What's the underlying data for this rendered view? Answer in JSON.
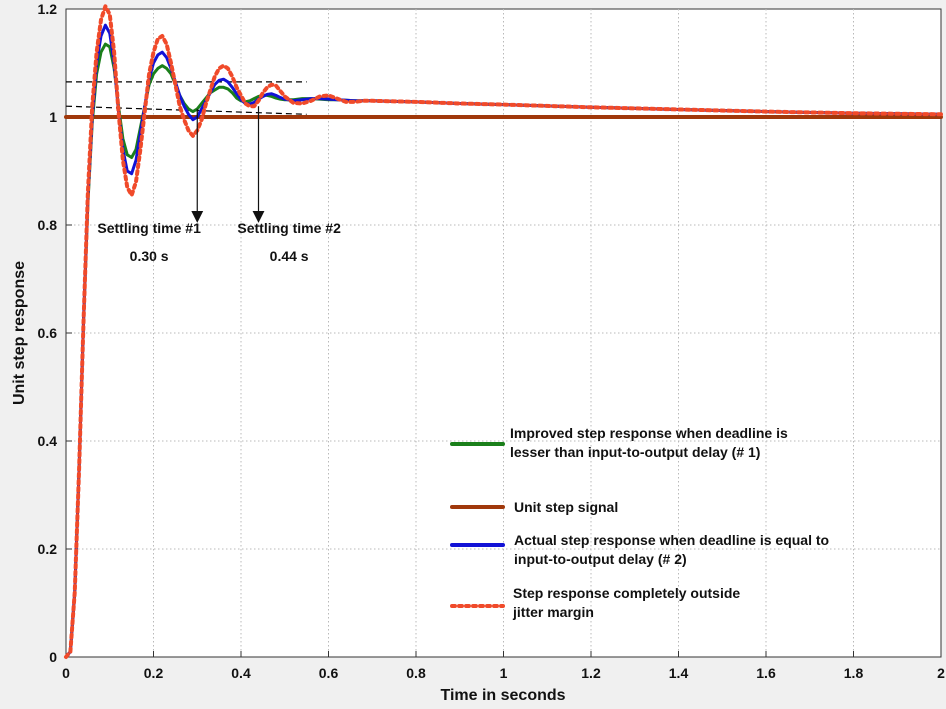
{
  "chart_data": {
    "type": "line",
    "xlabel": "Time in seconds",
    "ylabel": "Unit step response",
    "xlim": [
      0,
      2
    ],
    "ylim": [
      0,
      1.2
    ],
    "grid": true,
    "legend_position": "bottom-right",
    "x_ticks": [
      "0",
      "0.2",
      "0.4",
      "0.6",
      "0.8",
      "1",
      "1.2",
      "1.4",
      "1.6",
      "1.8",
      "2"
    ],
    "y_ticks": [
      "0",
      "0.2",
      "0.4",
      "0.6",
      "0.8",
      "1",
      "1.2"
    ],
    "series": [
      {
        "name": "Improved step response when deadline is lesser than input-to-output delay (# 1)",
        "legend_lines": [
          "Improved step response when deadline is",
          "lesser than input-to-output delay (# 1)"
        ],
        "color": "#1a7f1a",
        "line_style": "solid",
        "final_value": 1.0,
        "x": [
          0,
          0.01,
          0.02,
          0.03,
          0.04,
          0.05,
          0.06,
          0.07,
          0.08,
          0.09,
          0.1,
          0.11,
          0.12,
          0.13,
          0.14,
          0.15,
          0.16,
          0.17,
          0.18,
          0.19,
          0.2,
          0.21,
          0.22,
          0.23,
          0.24,
          0.25,
          0.26,
          0.27,
          0.28,
          0.29,
          0.3,
          0.31,
          0.32,
          0.33,
          0.34,
          0.35,
          0.36,
          0.37,
          0.38,
          0.39,
          0.4,
          0.41,
          0.42,
          0.43,
          0.44,
          0.45,
          0.46,
          0.47,
          0.48,
          0.49,
          0.5,
          0.52,
          0.54,
          0.56,
          0.58,
          0.6,
          0.62,
          0.64,
          0.66,
          0.68,
          0.7,
          0.75,
          0.8,
          0.9,
          1.0,
          1.2,
          1.4,
          1.6,
          1.8,
          2.0
        ],
        "y": [
          0,
          0.01,
          0.12,
          0.35,
          0.62,
          0.84,
          0.99,
          1.08,
          1.12,
          1.135,
          1.13,
          1.09,
          1.02,
          0.96,
          0.93,
          0.925,
          0.94,
          0.98,
          1.02,
          1.06,
          1.08,
          1.09,
          1.095,
          1.09,
          1.08,
          1.06,
          1.04,
          1.025,
          1.015,
          1.01,
          1.015,
          1.025,
          1.035,
          1.045,
          1.05,
          1.055,
          1.055,
          1.052,
          1.045,
          1.035,
          1.03,
          1.028,
          1.03,
          1.034,
          1.038,
          1.04,
          1.04,
          1.038,
          1.035,
          1.033,
          1.032,
          1.032,
          1.034,
          1.034,
          1.033,
          1.032,
          1.032,
          1.031,
          1.03,
          1.03,
          1.03,
          1.029,
          1.028,
          1.025,
          1.023,
          1.018,
          1.014,
          1.01,
          1.007,
          1.005
        ]
      },
      {
        "name": "Unit step signal",
        "legend_lines": [
          "Unit step signal"
        ],
        "color": "#a0380b",
        "line_style": "solid",
        "x": [
          0,
          2
        ],
        "y": [
          1,
          1
        ]
      },
      {
        "name": "Actual step response when deadline is equal to input-to-output delay (# 2)",
        "legend_lines": [
          "Actual step response when deadline is equal to",
          "input-to-output delay (# 2)"
        ],
        "color": "#1212d6",
        "line_style": "solid",
        "x": [
          0,
          0.01,
          0.02,
          0.03,
          0.04,
          0.05,
          0.06,
          0.07,
          0.08,
          0.09,
          0.1,
          0.11,
          0.12,
          0.13,
          0.14,
          0.15,
          0.16,
          0.17,
          0.18,
          0.19,
          0.2,
          0.21,
          0.22,
          0.23,
          0.24,
          0.25,
          0.26,
          0.27,
          0.28,
          0.29,
          0.3,
          0.31,
          0.32,
          0.33,
          0.34,
          0.35,
          0.36,
          0.37,
          0.38,
          0.39,
          0.4,
          0.41,
          0.42,
          0.43,
          0.44,
          0.45,
          0.46,
          0.47,
          0.48,
          0.49,
          0.5,
          0.52,
          0.54,
          0.56,
          0.58,
          0.6,
          0.62,
          0.64,
          0.66,
          0.68,
          0.7,
          0.75,
          0.8,
          0.9,
          1.0,
          1.2,
          1.4,
          1.6,
          1.8,
          2.0
        ],
        "y": [
          0,
          0.01,
          0.12,
          0.35,
          0.62,
          0.85,
          1.0,
          1.1,
          1.15,
          1.17,
          1.155,
          1.1,
          1.01,
          0.94,
          0.9,
          0.895,
          0.92,
          0.97,
          1.02,
          1.07,
          1.1,
          1.115,
          1.12,
          1.11,
          1.09,
          1.065,
          1.04,
          1.02,
          1.005,
          0.995,
          1.0,
          1.015,
          1.03,
          1.045,
          1.06,
          1.068,
          1.07,
          1.065,
          1.055,
          1.043,
          1.032,
          1.025,
          1.024,
          1.027,
          1.033,
          1.038,
          1.042,
          1.043,
          1.04,
          1.036,
          1.033,
          1.03,
          1.032,
          1.034,
          1.034,
          1.033,
          1.032,
          1.031,
          1.03,
          1.03,
          1.03,
          1.029,
          1.028,
          1.025,
          1.023,
          1.018,
          1.014,
          1.01,
          1.007,
          1.005
        ]
      },
      {
        "name": "Step response completely outside jitter margin",
        "legend_lines": [
          "Step response completely outside",
          "jitter margin"
        ],
        "color": "#f04a2a",
        "line_style": "dotted",
        "x": [
          0,
          0.01,
          0.02,
          0.03,
          0.04,
          0.05,
          0.06,
          0.07,
          0.08,
          0.09,
          0.1,
          0.11,
          0.12,
          0.13,
          0.14,
          0.15,
          0.16,
          0.17,
          0.18,
          0.19,
          0.2,
          0.21,
          0.22,
          0.23,
          0.24,
          0.25,
          0.26,
          0.27,
          0.28,
          0.29,
          0.3,
          0.31,
          0.32,
          0.33,
          0.34,
          0.35,
          0.36,
          0.37,
          0.38,
          0.39,
          0.4,
          0.41,
          0.42,
          0.43,
          0.44,
          0.45,
          0.46,
          0.47,
          0.48,
          0.49,
          0.5,
          0.52,
          0.54,
          0.56,
          0.58,
          0.6,
          0.62,
          0.64,
          0.66,
          0.68,
          0.7,
          0.75,
          0.8,
          0.9,
          1.0,
          1.2,
          1.4,
          1.6,
          1.8,
          2.0
        ],
        "y": [
          0,
          0.01,
          0.12,
          0.35,
          0.62,
          0.86,
          1.02,
          1.12,
          1.18,
          1.205,
          1.19,
          1.12,
          1.01,
          0.92,
          0.87,
          0.855,
          0.88,
          0.94,
          1.01,
          1.08,
          1.12,
          1.145,
          1.15,
          1.135,
          1.1,
          1.06,
          1.02,
          0.995,
          0.975,
          0.965,
          0.975,
          0.995,
          1.025,
          1.05,
          1.075,
          1.09,
          1.095,
          1.09,
          1.075,
          1.055,
          1.04,
          1.025,
          1.02,
          1.02,
          1.03,
          1.045,
          1.055,
          1.06,
          1.058,
          1.048,
          1.038,
          1.026,
          1.025,
          1.03,
          1.038,
          1.04,
          1.034,
          1.028,
          1.028,
          1.03,
          1.03,
          1.029,
          1.028,
          1.025,
          1.023,
          1.018,
          1.014,
          1.01,
          1.007,
          1.005
        ]
      }
    ],
    "reference_lines": [
      {
        "x_start": 0,
        "x_end": 0.55,
        "y_start": 1.065,
        "y_end": 1.065,
        "style": "dashed",
        "color": "#000000"
      },
      {
        "x_start": 0,
        "x_end": 0.55,
        "y_start": 1.02,
        "y_end": 1.005,
        "style": "dashed",
        "color": "#000000"
      }
    ],
    "annotations": [
      {
        "lines": [
          "Settling time #1",
          "0.30 s"
        ],
        "arrow_from_x": 0.3,
        "arrow_from_y": 1.015,
        "arrow_to_x": 0.3,
        "arrow_to_y": 0.815,
        "text_x": 0.19,
        "text_y": 0.785
      },
      {
        "lines": [
          "Settling time #2",
          "0.44 s"
        ],
        "arrow_from_x": 0.44,
        "arrow_from_y": 1.02,
        "arrow_to_x": 0.44,
        "arrow_to_y": 0.815,
        "text_x": 0.51,
        "text_y": 0.785
      }
    ]
  }
}
